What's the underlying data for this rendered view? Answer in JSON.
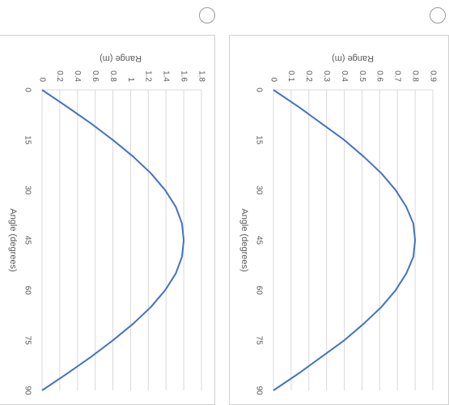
{
  "chart_data": [
    {
      "type": "line",
      "orientation": "rotated-90-clockwise",
      "xlabel": "Angle (degrees)",
      "ylabel": "Range (m)",
      "x_ticks": [
        "0",
        "15",
        "30",
        "45",
        "60",
        "75",
        "90"
      ],
      "y_ticks": [
        "0",
        "0.2",
        "0.4",
        "0.6",
        "0.8",
        "1",
        "1.2",
        "1.4",
        "1.6",
        "1.8"
      ],
      "xlim": [
        0,
        90
      ],
      "ylim": [
        0,
        1.8
      ],
      "grid": true,
      "series": [
        {
          "color": "#4472c4",
          "x": [
            0,
            5,
            10,
            15,
            20,
            25,
            30,
            35,
            40,
            45,
            50,
            55,
            60,
            65,
            70,
            75,
            80,
            85,
            90
          ],
          "y": [
            0,
            0.28,
            0.55,
            0.8,
            1.03,
            1.23,
            1.39,
            1.51,
            1.58,
            1.6,
            1.58,
            1.51,
            1.39,
            1.23,
            1.03,
            0.8,
            0.55,
            0.28,
            0
          ]
        }
      ]
    },
    {
      "type": "line",
      "orientation": "rotated-90-clockwise",
      "xlabel": "Angle (degrees)",
      "ylabel": "Range (m)",
      "x_ticks": [
        "0",
        "15",
        "30",
        "45",
        "60",
        "75",
        "90"
      ],
      "y_ticks": [
        "0",
        "0.1",
        "0.2",
        "0.3",
        "0.4",
        "0.5",
        "0.6",
        "0.7",
        "0.8",
        "0.9"
      ],
      "xlim": [
        0,
        90
      ],
      "ylim": [
        0,
        0.9
      ],
      "grid": true,
      "series": [
        {
          "color": "#4472c4",
          "x": [
            0,
            5,
            10,
            15,
            20,
            25,
            30,
            35,
            40,
            45,
            50,
            55,
            60,
            65,
            70,
            75,
            80,
            85,
            90
          ],
          "y": [
            0,
            0.14,
            0.27,
            0.4,
            0.51,
            0.61,
            0.69,
            0.75,
            0.79,
            0.8,
            0.79,
            0.75,
            0.69,
            0.61,
            0.51,
            0.4,
            0.27,
            0.14,
            0
          ]
        }
      ]
    }
  ]
}
